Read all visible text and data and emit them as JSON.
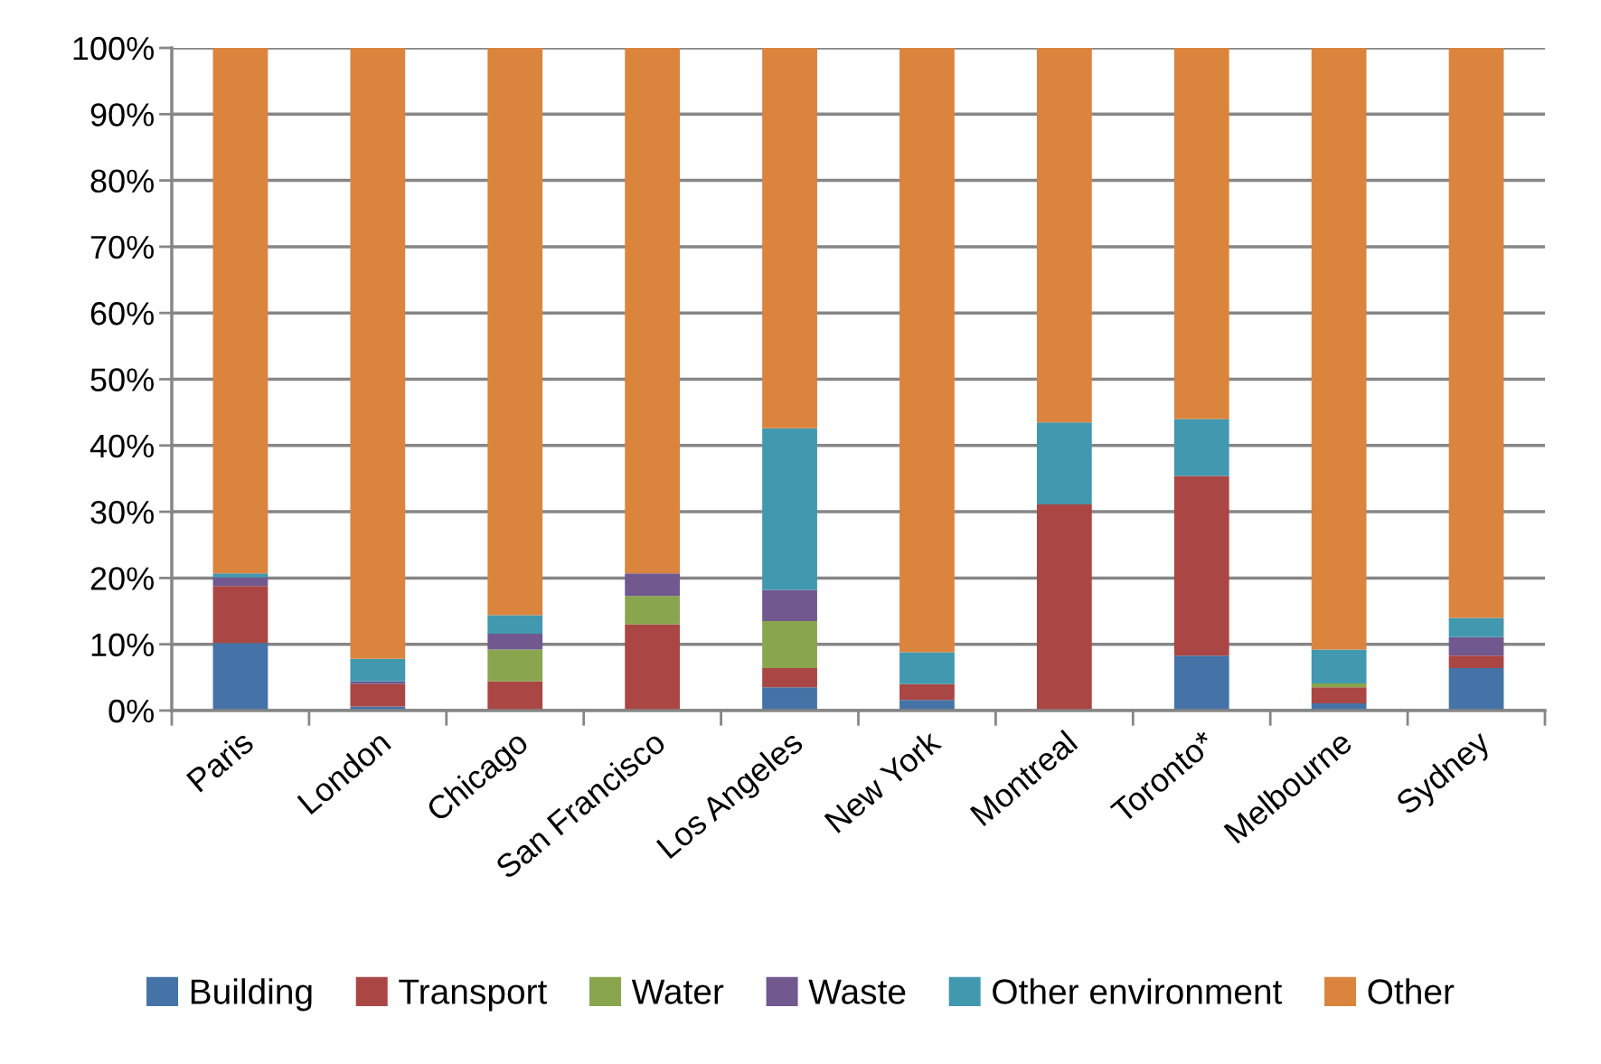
{
  "chart_data": {
    "type": "bar",
    "stacked": true,
    "categories": [
      "Paris",
      "London",
      "Chicago",
      "San Francisco",
      "Los Angeles",
      "New York",
      "Montreal",
      "Toronto*",
      "Melbourne",
      "Sydney"
    ],
    "series": [
      {
        "name": "Building",
        "color": "#4572a7",
        "values": [
          10.2,
          0.6,
          0,
          0,
          3.5,
          1.6,
          0,
          8.3,
          1.1,
          6.4
        ]
      },
      {
        "name": "Transport",
        "color": "#aa4643",
        "values": [
          8.6,
          3.4,
          4.4,
          13.0,
          2.9,
          2.4,
          31.1,
          27.1,
          2.4,
          1.9
        ]
      },
      {
        "name": "Water",
        "color": "#89a54e",
        "values": [
          0,
          0,
          4.8,
          4.3,
          7.1,
          0,
          0,
          0,
          0.6,
          0
        ]
      },
      {
        "name": "Waste",
        "color": "#71588f",
        "values": [
          1.3,
          0.4,
          2.4,
          3.4,
          4.7,
          0,
          0,
          0,
          0,
          2.8
        ]
      },
      {
        "name": "Other environment",
        "color": "#4198af",
        "values": [
          0.6,
          3.4,
          2.8,
          0,
          24.4,
          4.8,
          12.4,
          8.6,
          5.1,
          2.9
        ]
      },
      {
        "name": "Other",
        "color": "#db843d",
        "values": [
          79.3,
          92.2,
          85.6,
          79.3,
          57.4,
          91.2,
          56.5,
          56.0,
          90.8,
          86.0
        ]
      }
    ],
    "ylim": [
      0,
      100
    ],
    "yticks": [
      {
        "value": 0,
        "label": "0%"
      },
      {
        "value": 10,
        "label": "10%"
      },
      {
        "value": 20,
        "label": "20%"
      },
      {
        "value": 30,
        "label": "30%"
      },
      {
        "value": 40,
        "label": "40%"
      },
      {
        "value": 50,
        "label": "50%"
      },
      {
        "value": 60,
        "label": "60%"
      },
      {
        "value": 70,
        "label": "70%"
      },
      {
        "value": 80,
        "label": "80%"
      },
      {
        "value": 90,
        "label": "90%"
      },
      {
        "value": 100,
        "label": "100%"
      }
    ],
    "grid": "y",
    "legend": "bottom"
  }
}
